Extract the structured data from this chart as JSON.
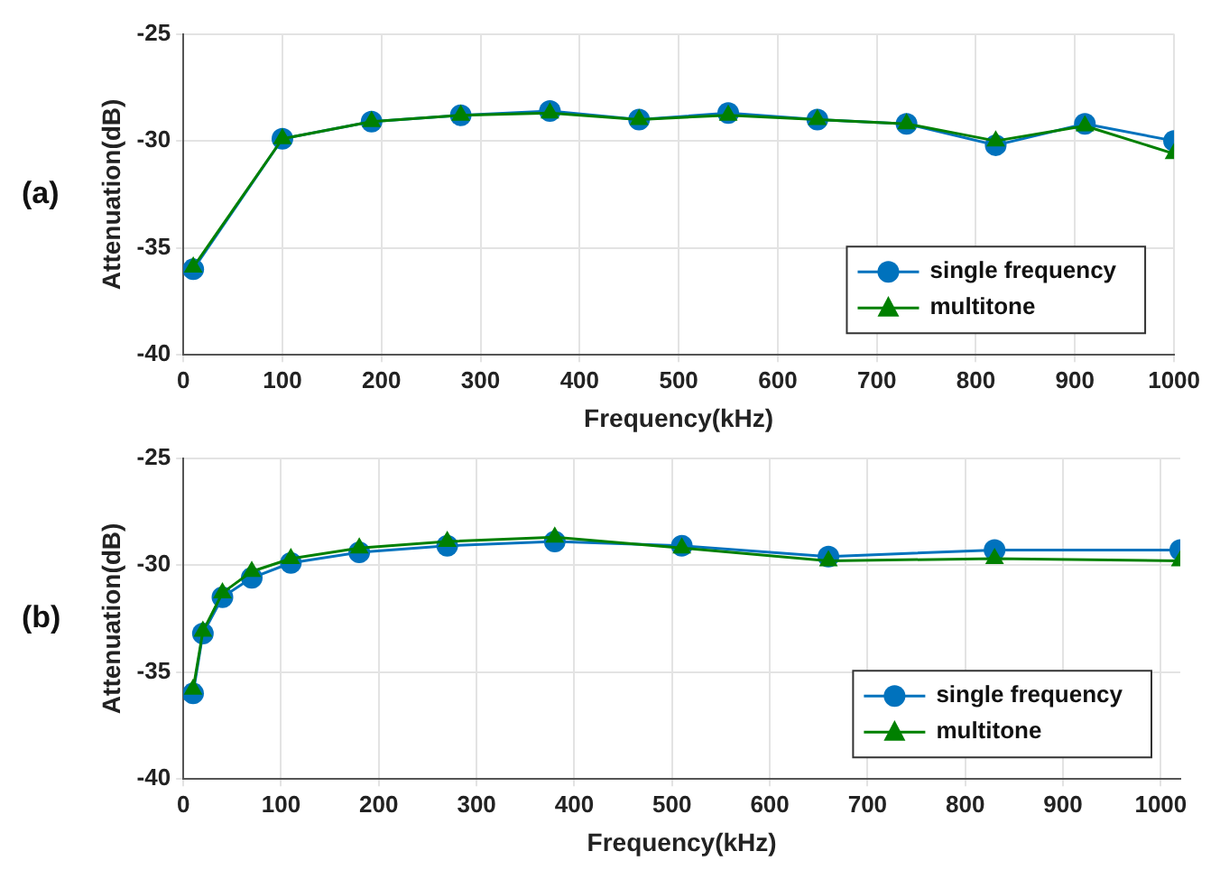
{
  "chart_data": [
    {
      "type": "line",
      "title": "(a)",
      "xlabel": "Frequency(kHz)",
      "ylabel": "Attenuation(dB)",
      "x": [
        10,
        100,
        190,
        280,
        370,
        460,
        550,
        640,
        730,
        820,
        910,
        1000
      ],
      "xlim": [
        0,
        1000
      ],
      "xticks": [
        0,
        100,
        200,
        300,
        400,
        500,
        600,
        700,
        800,
        900,
        1000
      ],
      "ylim": [
        -40,
        -25
      ],
      "yticks": [
        -40,
        -35,
        -30,
        -25
      ],
      "grid": true,
      "legend": "bottom right",
      "line_style": "solid",
      "series": [
        {
          "name": "single frequency",
          "color": "#0072bd",
          "marker": "circle",
          "values": [
            -36.0,
            -29.9,
            -29.1,
            -28.8,
            -28.6,
            -29.0,
            -28.7,
            -29.0,
            -29.2,
            -30.2,
            -29.2,
            -30.0
          ]
        },
        {
          "name": "multitone",
          "color": "#008000",
          "marker": "triangle",
          "values": [
            -35.9,
            -29.9,
            -29.1,
            -28.8,
            -28.7,
            -29.0,
            -28.8,
            -29.0,
            -29.2,
            -30.0,
            -29.3,
            -30.6
          ]
        }
      ]
    },
    {
      "type": "line",
      "title": "(b)",
      "xlabel": "Frequency(kHz)",
      "ylabel": "Attenuation(dB)",
      "x": [
        10,
        20,
        40,
        70,
        110,
        180,
        270,
        380,
        510,
        660,
        830,
        1020
      ],
      "xlim": [
        0,
        1020
      ],
      "xticks": [
        0,
        100,
        200,
        300,
        400,
        500,
        600,
        700,
        800,
        900,
        1000
      ],
      "ylim": [
        -40,
        -25
      ],
      "yticks": [
        -40,
        -35,
        -30,
        -25
      ],
      "grid": true,
      "legend": "bottom right",
      "line_style": "solid",
      "series": [
        {
          "name": "single frequency",
          "color": "#0072bd",
          "marker": "circle",
          "values": [
            -36.0,
            -33.2,
            -31.5,
            -30.6,
            -29.9,
            -29.4,
            -29.1,
            -28.9,
            -29.1,
            -29.6,
            -29.3,
            -29.3
          ]
        },
        {
          "name": "multitone",
          "color": "#008000",
          "marker": "triangle",
          "values": [
            -35.8,
            -33.1,
            -31.3,
            -30.3,
            -29.7,
            -29.2,
            -28.9,
            -28.7,
            -29.2,
            -29.8,
            -29.7,
            -29.8
          ]
        }
      ]
    }
  ]
}
